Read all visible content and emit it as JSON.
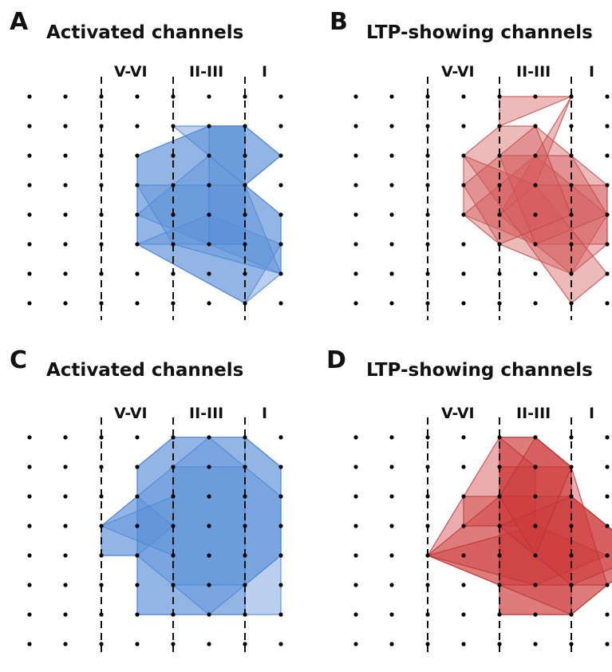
{
  "panels": [
    {
      "letter": "A",
      "title": "Activated channels",
      "color": "#5b8fd6",
      "edge": "#4a86d8",
      "layers": [
        "V-VI",
        "II-III",
        "I"
      ],
      "polygons": [
        [
          [
            3,
            2
          ],
          [
            5,
            1
          ],
          [
            6,
            1
          ],
          [
            7,
            2
          ],
          [
            6,
            3
          ],
          [
            7,
            4
          ],
          [
            7,
            6
          ],
          [
            6,
            7
          ],
          [
            3,
            5
          ]
        ],
        [
          [
            3,
            2
          ],
          [
            5,
            1
          ],
          [
            6,
            1
          ],
          [
            6,
            5
          ],
          [
            3,
            5
          ]
        ],
        [
          [
            3,
            4
          ],
          [
            5,
            2
          ],
          [
            7,
            4
          ],
          [
            7,
            6
          ]
        ],
        [
          [
            4,
            1
          ],
          [
            6,
            1
          ],
          [
            7,
            2
          ],
          [
            6,
            3
          ]
        ],
        [
          [
            3,
            5
          ],
          [
            5,
            4
          ],
          [
            7,
            5
          ],
          [
            6,
            7
          ]
        ],
        [
          [
            3,
            3
          ],
          [
            6,
            3
          ],
          [
            7,
            6
          ],
          [
            4,
            5
          ]
        ],
        [
          [
            5,
            1
          ],
          [
            6,
            1
          ],
          [
            6,
            5
          ],
          [
            5,
            5
          ]
        ]
      ]
    },
    {
      "letter": "B",
      "title": "LTP-showing channels",
      "color": "#d55a5a",
      "edge": "#c04848",
      "layers": [
        "V-VI",
        "II-III",
        "I"
      ],
      "polygons": [
        [
          [
            3,
            2
          ],
          [
            4,
            1
          ],
          [
            5,
            1
          ],
          [
            7,
            3
          ],
          [
            7,
            5
          ],
          [
            5,
            5
          ],
          [
            3,
            4
          ]
        ],
        [
          [
            3,
            4
          ],
          [
            5,
            2
          ],
          [
            7,
            4
          ],
          [
            6,
            6
          ],
          [
            4,
            5
          ]
        ],
        [
          [
            5,
            3
          ],
          [
            7,
            3
          ],
          [
            7,
            5
          ],
          [
            6,
            6
          ],
          [
            4,
            4
          ]
        ],
        [
          [
            4,
            0
          ],
          [
            6,
            0
          ],
          [
            4,
            1
          ]
        ],
        [
          [
            6,
            0
          ],
          [
            5,
            3
          ],
          [
            4,
            4
          ]
        ],
        [
          [
            3,
            2
          ],
          [
            5,
            3
          ],
          [
            7,
            6
          ],
          [
            6,
            7
          ]
        ],
        [
          [
            4,
            2
          ],
          [
            6,
            2
          ],
          [
            7,
            4
          ],
          [
            5,
            5
          ]
        ],
        [
          [
            3,
            3
          ],
          [
            5,
            1
          ],
          [
            6,
            4
          ],
          [
            4,
            5
          ]
        ]
      ]
    },
    {
      "letter": "C",
      "title": "Activated channels",
      "color": "#5b8fd6",
      "edge": "#4a86d8",
      "layers": [
        "V-VI",
        "II-III",
        "I"
      ],
      "polygons": [
        [
          [
            3,
            1
          ],
          [
            4,
            0
          ],
          [
            6,
            0
          ],
          [
            7,
            1
          ],
          [
            7,
            4
          ],
          [
            6,
            5
          ],
          [
            6,
            6
          ],
          [
            3,
            6
          ],
          [
            3,
            4
          ],
          [
            2,
            4
          ],
          [
            2,
            3
          ],
          [
            3,
            2
          ]
        ],
        [
          [
            3,
            1
          ],
          [
            4,
            0
          ],
          [
            6,
            0
          ],
          [
            6,
            6
          ],
          [
            3,
            6
          ]
        ],
        [
          [
            2,
            3
          ],
          [
            3,
            2
          ],
          [
            4,
            3
          ],
          [
            3,
            4
          ],
          [
            2,
            4
          ]
        ],
        [
          [
            6,
            0
          ],
          [
            7,
            1
          ],
          [
            7,
            6
          ],
          [
            6,
            6
          ]
        ],
        [
          [
            3,
            2
          ],
          [
            5,
            0
          ],
          [
            7,
            2
          ],
          [
            7,
            4
          ],
          [
            5,
            6
          ],
          [
            3,
            4
          ]
        ],
        [
          [
            4,
            1
          ],
          [
            6,
            1
          ],
          [
            6,
            5
          ],
          [
            4,
            5
          ]
        ],
        [
          [
            2,
            3
          ],
          [
            4,
            2
          ],
          [
            4,
            4
          ]
        ]
      ]
    },
    {
      "letter": "D",
      "title": "LTP-showing channels",
      "color": "#cc3a3a",
      "edge": "#b83232",
      "layers": [
        "V-VI",
        "II-III",
        "I"
      ],
      "polygons": [
        [
          [
            4,
            0
          ],
          [
            5,
            0
          ],
          [
            6,
            1
          ],
          [
            6,
            2
          ],
          [
            8,
            4
          ],
          [
            7,
            5
          ],
          [
            6,
            6
          ],
          [
            4,
            6
          ],
          [
            4,
            5
          ],
          [
            2,
            4
          ],
          [
            3,
            2
          ],
          [
            4,
            2
          ]
        ],
        [
          [
            4,
            0
          ],
          [
            5,
            0
          ],
          [
            6,
            1
          ],
          [
            6,
            6
          ],
          [
            4,
            6
          ]
        ],
        [
          [
            2,
            4
          ],
          [
            4,
            2
          ],
          [
            6,
            2
          ],
          [
            8,
            4
          ],
          [
            6,
            6
          ],
          [
            4,
            5
          ]
        ],
        [
          [
            3,
            2
          ],
          [
            4,
            0
          ],
          [
            5,
            1
          ],
          [
            5,
            3
          ],
          [
            3,
            3
          ]
        ],
        [
          [
            2,
            4
          ],
          [
            5,
            3
          ],
          [
            7,
            4
          ],
          [
            5,
            5
          ]
        ],
        [
          [
            4,
            1
          ],
          [
            6,
            1
          ],
          [
            7,
            5
          ],
          [
            4,
            5
          ]
        ],
        [
          [
            4,
            3
          ],
          [
            6,
            2
          ],
          [
            8,
            4
          ],
          [
            6,
            5
          ]
        ],
        [
          [
            5,
            0
          ],
          [
            6,
            1
          ],
          [
            5,
            4
          ],
          [
            4,
            2
          ]
        ]
      ]
    }
  ]
}
